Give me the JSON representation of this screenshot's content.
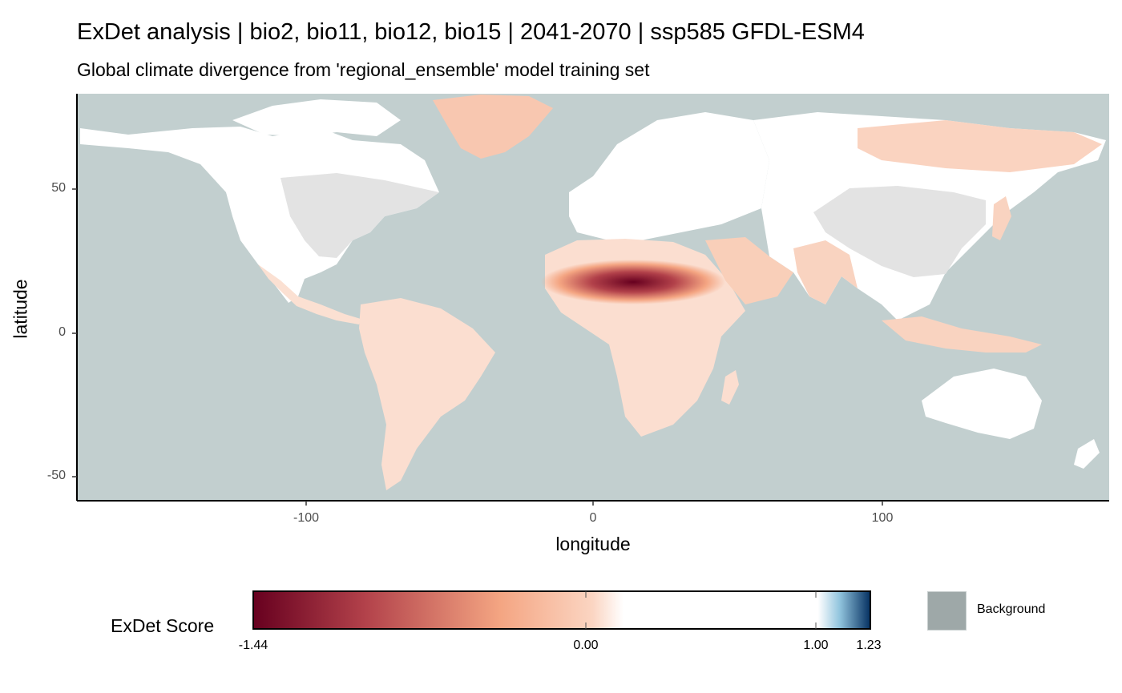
{
  "chart_data": {
    "type": "heatmap",
    "title": "ExDet analysis | bio2, bio11, bio12, bio15 | 2041-2070 | ssp585 GFDL-ESM4",
    "subtitle": "Global climate divergence from 'regional_ensemble' model training set",
    "xlabel": "longitude",
    "ylabel": "latitude",
    "xlim": [
      -180,
      180
    ],
    "ylim": [
      -58,
      83
    ],
    "x_ticks": [
      -100,
      0,
      100
    ],
    "y_ticks": [
      -50,
      0,
      50
    ],
    "x_tick_labels": [
      "-100",
      "0",
      "100"
    ],
    "y_tick_labels": [
      "-50",
      "0",
      "50"
    ],
    "grid": false,
    "colors": {
      "ocean": "#c2cfcf",
      "land_neutral": "#ffffff",
      "training_region": "#e3e3e3",
      "low": "#67001f",
      "mid_negative": "#f4a582",
      "zero": "#ffffff",
      "high": "#053061"
    },
    "legend": {
      "placement": "bottom",
      "title": "ExDet Score",
      "colorbar_values": [
        -1.44,
        0.0,
        1.0,
        1.23
      ],
      "colorbar_labels": [
        "-1.44",
        "0.00",
        "1.00",
        "1.23"
      ],
      "background_label": "Background",
      "background_color": "#9ea8a8"
    },
    "hotspots": [
      {
        "region": "Sahara / Sahel",
        "lon": 15,
        "lat": 18,
        "score": -1.44
      },
      {
        "region": "Arabian Peninsula",
        "lon": 45,
        "lat": 22,
        "score": -0.5
      },
      {
        "region": "Greenland",
        "lon": -42,
        "lat": 72,
        "score": -0.4
      },
      {
        "region": "Eastern Siberia",
        "lon": 130,
        "lat": 67,
        "score": -0.4
      }
    ]
  }
}
